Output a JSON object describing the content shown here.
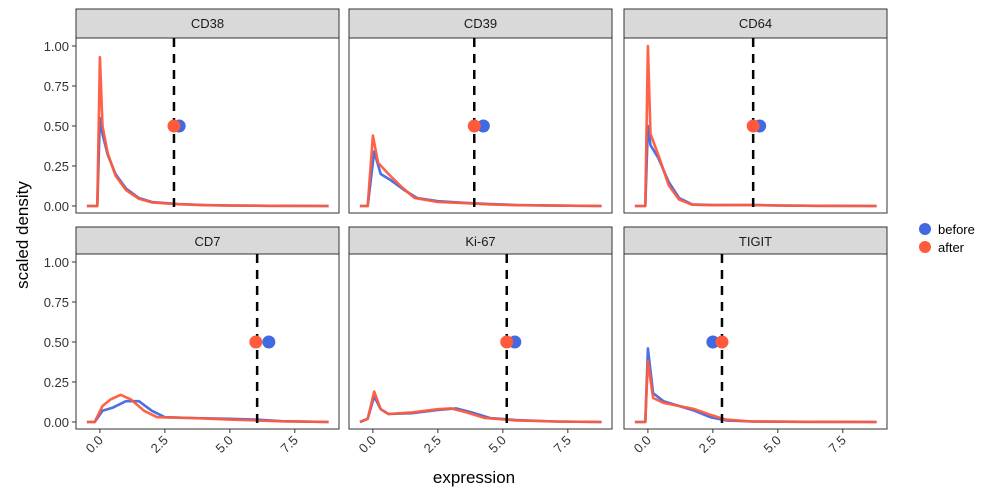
{
  "chart_data": {
    "type": "line",
    "xlabel": "expression",
    "ylabel": "scaled density",
    "xlim": [
      -0.92,
      9.2
    ],
    "ylim": [
      -0.044,
      1.05
    ],
    "xticks": [
      0.0,
      2.5,
      5.0,
      7.5
    ],
    "xtick_labels": [
      "0.0",
      "2.5",
      "5.0",
      "7.5"
    ],
    "yticks": [
      0.0,
      0.25,
      0.5,
      0.75,
      1.0
    ],
    "ytick_labels": [
      "0.00",
      "0.25",
      "0.50",
      "0.75",
      "1.00"
    ],
    "grid": false,
    "legend_placement": "right",
    "legend": [
      {
        "name": "before",
        "color": "#4169E1"
      },
      {
        "name": "after",
        "color": "#FF5A3C"
      }
    ],
    "threshold_style": "dashed black vertical line",
    "panels": [
      {
        "title": "CD38",
        "threshold": 2.85,
        "points": {
          "before": [
            3.05,
            0.5
          ],
          "after": [
            2.85,
            0.5
          ]
        },
        "series": {
          "before": [
            [
              -0.5,
              0
            ],
            [
              -0.1,
              0
            ],
            [
              0.0,
              0.55
            ],
            [
              0.1,
              0.45
            ],
            [
              0.3,
              0.32
            ],
            [
              0.6,
              0.2
            ],
            [
              1.0,
              0.11
            ],
            [
              1.5,
              0.05
            ],
            [
              2.0,
              0.025
            ],
            [
              3.0,
              0.012
            ],
            [
              4.0,
              0.006
            ],
            [
              5.0,
              0.003
            ],
            [
              6.5,
              0.001
            ],
            [
              8.8,
              0
            ]
          ],
          "after": [
            [
              -0.5,
              0
            ],
            [
              -0.1,
              0
            ],
            [
              0.0,
              0.93
            ],
            [
              0.1,
              0.5
            ],
            [
              0.3,
              0.33
            ],
            [
              0.6,
              0.19
            ],
            [
              1.0,
              0.1
            ],
            [
              1.5,
              0.045
            ],
            [
              2.0,
              0.022
            ],
            [
              3.0,
              0.011
            ],
            [
              4.0,
              0.005
            ],
            [
              5.0,
              0.002
            ],
            [
              6.5,
              0.001
            ],
            [
              8.8,
              0
            ]
          ]
        }
      },
      {
        "title": "CD39",
        "threshold": 3.9,
        "points": {
          "before": [
            4.25,
            0.5
          ],
          "after": [
            3.9,
            0.5
          ]
        },
        "series": {
          "before": [
            [
              -0.5,
              0
            ],
            [
              -0.2,
              0
            ],
            [
              0.05,
              0.34
            ],
            [
              0.3,
              0.2
            ],
            [
              0.7,
              0.16
            ],
            [
              1.2,
              0.1
            ],
            [
              1.7,
              0.05
            ],
            [
              2.5,
              0.03
            ],
            [
              3.5,
              0.02
            ],
            [
              4.5,
              0.012
            ],
            [
              5.5,
              0.006
            ],
            [
              7,
              0.002
            ],
            [
              8.8,
              0
            ]
          ],
          "after": [
            [
              -0.5,
              0
            ],
            [
              -0.2,
              0
            ],
            [
              0.0,
              0.44
            ],
            [
              0.2,
              0.27
            ],
            [
              0.6,
              0.2
            ],
            [
              1.1,
              0.12
            ],
            [
              1.6,
              0.05
            ],
            [
              2.5,
              0.025
            ],
            [
              3.5,
              0.018
            ],
            [
              4.5,
              0.01
            ],
            [
              5.5,
              0.005
            ],
            [
              7,
              0.002
            ],
            [
              8.8,
              0
            ]
          ]
        }
      },
      {
        "title": "CD64",
        "threshold": 4.05,
        "points": {
          "before": [
            4.3,
            0.5
          ],
          "after": [
            4.05,
            0.5
          ]
        },
        "series": {
          "before": [
            [
              -0.5,
              0
            ],
            [
              -0.1,
              0
            ],
            [
              0.0,
              0.5
            ],
            [
              0.1,
              0.38
            ],
            [
              0.4,
              0.3
            ],
            [
              0.8,
              0.15
            ],
            [
              1.2,
              0.05
            ],
            [
              1.7,
              0.01
            ],
            [
              2.5,
              0.006
            ],
            [
              4.0,
              0.006
            ],
            [
              5.0,
              0.003
            ],
            [
              6.5,
              0.001
            ],
            [
              8.8,
              0
            ]
          ],
          "after": [
            [
              -0.5,
              0
            ],
            [
              -0.1,
              0
            ],
            [
              0.0,
              1.0
            ],
            [
              0.1,
              0.45
            ],
            [
              0.4,
              0.32
            ],
            [
              0.8,
              0.13
            ],
            [
              1.2,
              0.04
            ],
            [
              1.7,
              0.008
            ],
            [
              2.5,
              0.005
            ],
            [
              4.0,
              0.006
            ],
            [
              5.0,
              0.003
            ],
            [
              6.5,
              0.001
            ],
            [
              8.8,
              0
            ]
          ]
        }
      },
      {
        "title": "CD7",
        "threshold": 6.05,
        "points": {
          "before": [
            6.5,
            0.5
          ],
          "after": [
            6.0,
            0.5
          ]
        },
        "series": {
          "before": [
            [
              -0.5,
              0
            ],
            [
              -0.2,
              0
            ],
            [
              0.1,
              0.07
            ],
            [
              0.5,
              0.09
            ],
            [
              1.0,
              0.13
            ],
            [
              1.5,
              0.13
            ],
            [
              2.0,
              0.07
            ],
            [
              2.5,
              0.03
            ],
            [
              3.5,
              0.025
            ],
            [
              5.0,
              0.02
            ],
            [
              6.0,
              0.015
            ],
            [
              7.0,
              0.005
            ],
            [
              8.8,
              0
            ]
          ],
          "after": [
            [
              -0.5,
              0
            ],
            [
              -0.2,
              0
            ],
            [
              0.1,
              0.1
            ],
            [
              0.4,
              0.14
            ],
            [
              0.8,
              0.17
            ],
            [
              1.2,
              0.14
            ],
            [
              1.7,
              0.07
            ],
            [
              2.2,
              0.03
            ],
            [
              3.5,
              0.025
            ],
            [
              5.0,
              0.015
            ],
            [
              6.0,
              0.01
            ],
            [
              7.0,
              0.004
            ],
            [
              8.8,
              0
            ]
          ]
        }
      },
      {
        "title": "Ki-67",
        "threshold": 5.15,
        "points": {
          "before": [
            5.46,
            0.5
          ],
          "after": [
            5.15,
            0.5
          ]
        },
        "series": {
          "before": [
            [
              -0.5,
              0
            ],
            [
              -0.2,
              0.02
            ],
            [
              0.05,
              0.16
            ],
            [
              0.3,
              0.08
            ],
            [
              0.6,
              0.05
            ],
            [
              1.5,
              0.055
            ],
            [
              2.5,
              0.075
            ],
            [
              3.2,
              0.085
            ],
            [
              3.8,
              0.06
            ],
            [
              4.5,
              0.025
            ],
            [
              5.5,
              0.012
            ],
            [
              7,
              0.003
            ],
            [
              8.8,
              0
            ]
          ],
          "after": [
            [
              -0.5,
              0
            ],
            [
              -0.2,
              0.02
            ],
            [
              0.05,
              0.19
            ],
            [
              0.3,
              0.08
            ],
            [
              0.6,
              0.05
            ],
            [
              1.5,
              0.06
            ],
            [
              2.5,
              0.08
            ],
            [
              3.0,
              0.085
            ],
            [
              3.6,
              0.06
            ],
            [
              4.3,
              0.025
            ],
            [
              5.5,
              0.01
            ],
            [
              7,
              0.003
            ],
            [
              8.8,
              0
            ]
          ]
        }
      },
      {
        "title": "TIGIT",
        "threshold": 2.85,
        "points": {
          "before": [
            2.5,
            0.5
          ],
          "after": [
            2.85,
            0.5
          ]
        },
        "series": {
          "before": [
            [
              -0.5,
              0
            ],
            [
              -0.1,
              0
            ],
            [
              0.0,
              0.46
            ],
            [
              0.2,
              0.18
            ],
            [
              0.6,
              0.13
            ],
            [
              1.2,
              0.1
            ],
            [
              1.8,
              0.07
            ],
            [
              2.4,
              0.03
            ],
            [
              3.0,
              0.01
            ],
            [
              4.0,
              0.003
            ],
            [
              6,
              0.001
            ],
            [
              8.8,
              0
            ]
          ],
          "after": [
            [
              -0.5,
              0
            ],
            [
              -0.1,
              0
            ],
            [
              0.0,
              0.38
            ],
            [
              0.2,
              0.15
            ],
            [
              0.6,
              0.12
            ],
            [
              1.2,
              0.1
            ],
            [
              1.8,
              0.08
            ],
            [
              2.4,
              0.045
            ],
            [
              3.0,
              0.015
            ],
            [
              4.0,
              0.003
            ],
            [
              6,
              0.001
            ],
            [
              8.8,
              0
            ]
          ]
        }
      }
    ]
  }
}
